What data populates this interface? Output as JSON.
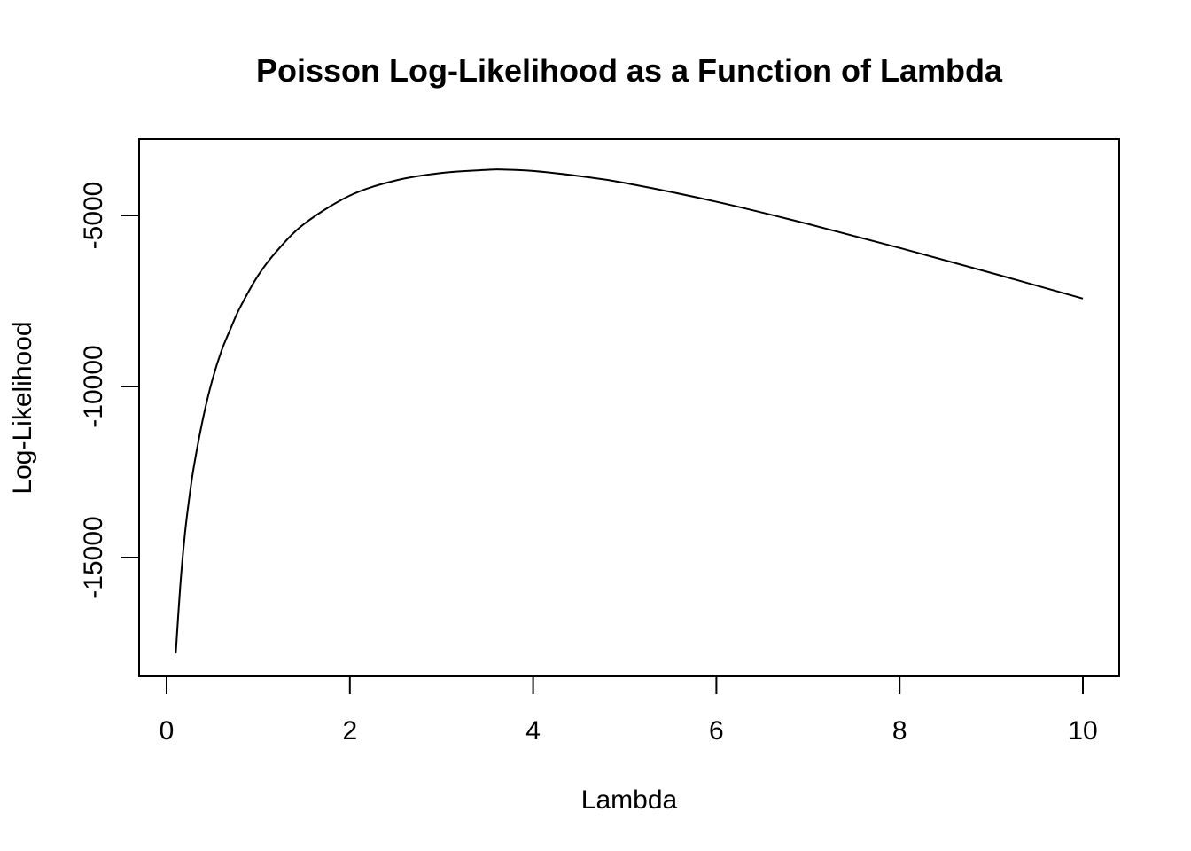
{
  "chart_data": {
    "type": "line",
    "title": "Poisson Log-Likelihood as a Function of Lambda",
    "xlabel": "Lambda",
    "ylabel": "Log-Likelihood",
    "xlim": [
      0,
      10
    ],
    "ylim": [
      -18000,
      -3500
    ],
    "x_ticks": [
      0,
      2,
      4,
      6,
      8,
      10
    ],
    "y_ticks": [
      -15000,
      -10000,
      -5000
    ],
    "x_tick_labels": [
      "0",
      "2",
      "4",
      "6",
      "8",
      "10"
    ],
    "y_tick_labels": [
      "-15000",
      "-10000",
      "-5000"
    ],
    "grid": false,
    "legend": "none",
    "line_color": "#000000",
    "series": [
      {
        "x": [
          0.1,
          0.15,
          0.2,
          0.25,
          0.3,
          0.4,
          0.5,
          0.6,
          0.7,
          0.8,
          1.0,
          1.2,
          1.5,
          2.0,
          2.5,
          3.0,
          3.5,
          3.66,
          4.0,
          4.5,
          5.0,
          6.0,
          7.0,
          8.0,
          9.0,
          10.0
        ],
        "y": [
          -17800,
          -15800,
          -14300,
          -13200,
          -12300,
          -10900,
          -9800,
          -8950,
          -8300,
          -7700,
          -6750,
          -6050,
          -5250,
          -4420,
          -3980,
          -3760,
          -3670,
          -3660,
          -3700,
          -3850,
          -4050,
          -4600,
          -5250,
          -5950,
          -6680,
          -7430
        ]
      }
    ]
  }
}
